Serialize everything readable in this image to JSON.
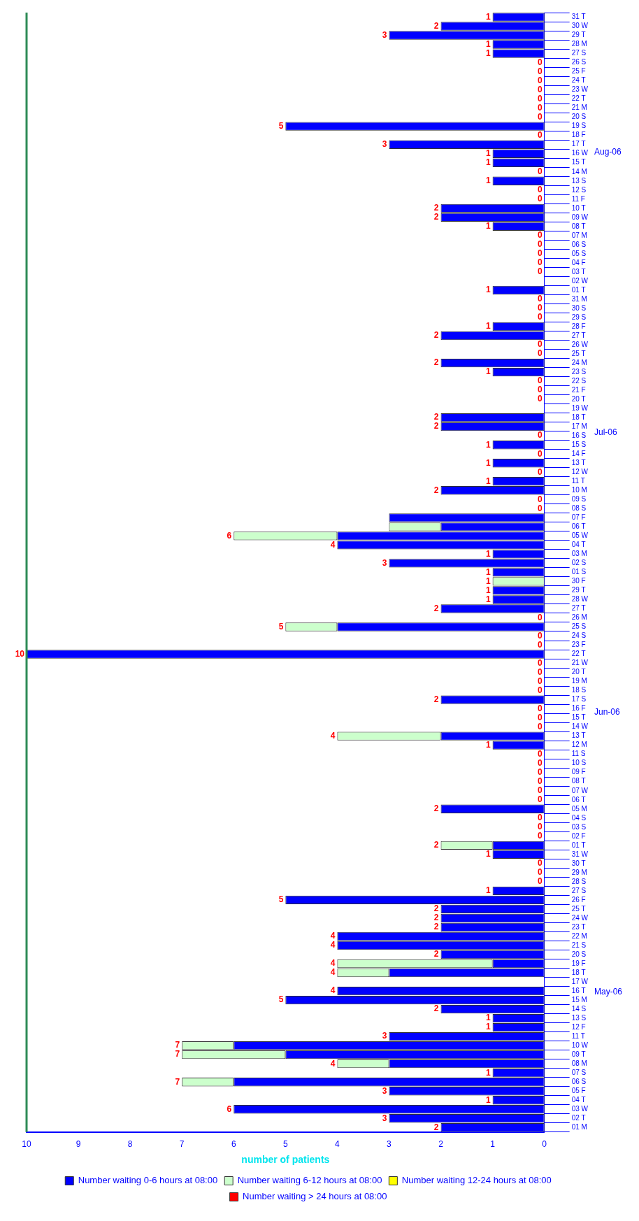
{
  "chart_data": {
    "type": "bar",
    "orientation": "horizontal",
    "stacked": true,
    "xlabel": "number of patients",
    "xlim": [
      10,
      0
    ],
    "xticks": [
      0,
      1,
      2,
      3,
      4,
      5,
      6,
      7,
      8,
      9,
      10
    ],
    "grid": false,
    "legend": "bottom",
    "categories": [
      "31 T",
      "30 W",
      "29 T",
      "28 M",
      "27 S",
      "26 S",
      "25 F",
      "24 T",
      "23 W",
      "22 T",
      "21 M",
      "20 S",
      "19 S",
      "18 F",
      "17 T",
      "16 W",
      "15 T",
      "14 M",
      "13 S",
      "12 S",
      "11 F",
      "10 T",
      "09 W",
      "08 T",
      "07 M",
      "06 S",
      "05 S",
      "04 F",
      "03 T",
      "02 W",
      "01 T",
      "31 M",
      "30 S",
      "29 S",
      "28 F",
      "27 T",
      "26 W",
      "25 T",
      "24 M",
      "23 S",
      "22 S",
      "21 F",
      "20 T",
      "19 W",
      "18 T",
      "17 M",
      "16 S",
      "15 S",
      "14 F",
      "13 T",
      "12 W",
      "11 T",
      "10 M",
      "09 S",
      "08 S",
      "07 F",
      "06 T",
      "05 W",
      "04 T",
      "03 M",
      "02 S",
      "01 S",
      "30 F",
      "29 T",
      "28 W",
      "27 T",
      "26 M",
      "25 S",
      "24 S",
      "23 F",
      "22 T",
      "21 W",
      "20 T",
      "19 M",
      "18 S",
      "17 S",
      "16 F",
      "15 T",
      "14 W",
      "13 T",
      "12 M",
      "11 S",
      "10 S",
      "09 F",
      "08 T",
      "07 W",
      "06 T",
      "05 M",
      "04 S",
      "03 S",
      "02 F",
      "01 T",
      "31 W",
      "30 T",
      "29 M",
      "28 S",
      "27 S",
      "26 F",
      "25 T",
      "24 W",
      "23 T",
      "22 M",
      "21 S",
      "20 S",
      "19 F",
      "18 T",
      "17 W",
      "16 T",
      "15 M",
      "14 S",
      "13 S",
      "12 F",
      "11 T",
      "10 W",
      "09 T",
      "08 M",
      "07 S",
      "06 S",
      "05 F",
      "04 T",
      "03 W",
      "02 T",
      "01 M"
    ],
    "series": [
      {
        "name": "Number waiting 0-6 hours at 08:00",
        "color": "#0000ff",
        "values": [
          1,
          2,
          3,
          1,
          1,
          0,
          0,
          0,
          0,
          0,
          0,
          0,
          5,
          0,
          3,
          1,
          1,
          0,
          1,
          0,
          0,
          2,
          2,
          1,
          0,
          0,
          0,
          0,
          0,
          null,
          1,
          0,
          0,
          0,
          1,
          2,
          0,
          0,
          2,
          1,
          0,
          0,
          0,
          null,
          2,
          2,
          0,
          1,
          0,
          1,
          0,
          1,
          2,
          0,
          0,
          3,
          2,
          4,
          4,
          1,
          3,
          1,
          0,
          1,
          1,
          2,
          0,
          4,
          0,
          0,
          10,
          0,
          0,
          0,
          0,
          2,
          0,
          0,
          0,
          2,
          1,
          0,
          0,
          0,
          0,
          0,
          0,
          2,
          0,
          0,
          0,
          1,
          1,
          0,
          0,
          0,
          1,
          5,
          2,
          2,
          2,
          4,
          4,
          2,
          1,
          3,
          null,
          4,
          5,
          2,
          1,
          1,
          3,
          6,
          5,
          3,
          1,
          6,
          3,
          1,
          6,
          3,
          2
        ]
      },
      {
        "name": "Number waiting 6-12 hours at 08:00",
        "color": "#ccffcc",
        "values": [
          0,
          0,
          0,
          0,
          0,
          0,
          0,
          0,
          0,
          0,
          0,
          0,
          0,
          0,
          0,
          0,
          0,
          0,
          0,
          0,
          0,
          0,
          0,
          0,
          0,
          0,
          0,
          0,
          0,
          null,
          0,
          0,
          0,
          0,
          0,
          0,
          0,
          0,
          0,
          0,
          0,
          0,
          0,
          null,
          0,
          0,
          0,
          0,
          0,
          0,
          0,
          0,
          0,
          0,
          0,
          0,
          1,
          2,
          0,
          0,
          0,
          0,
          1,
          0,
          0,
          0,
          0,
          1,
          0,
          0,
          0,
          0,
          0,
          0,
          0,
          0,
          0,
          0,
          0,
          2,
          0,
          0,
          0,
          0,
          0,
          0,
          0,
          0,
          0,
          0,
          0,
          1,
          0,
          0,
          0,
          0,
          0,
          0,
          0,
          0,
          0,
          0,
          0,
          0,
          3,
          1,
          null,
          0,
          0,
          0,
          0,
          0,
          0,
          1,
          2,
          1,
          0,
          1,
          0,
          0,
          0,
          0,
          0
        ]
      },
      {
        "name": "Number waiting 12-24 hours at 08:00",
        "color": "#ffff00",
        "values": [
          0,
          0,
          0,
          0,
          0,
          0,
          0,
          0,
          0,
          0,
          0,
          0,
          0,
          0,
          0,
          0,
          0,
          0,
          0,
          0,
          0,
          0,
          0,
          0,
          0,
          0,
          0,
          0,
          0,
          null,
          0,
          0,
          0,
          0,
          0,
          0,
          0,
          0,
          0,
          0,
          0,
          0,
          0,
          null,
          0,
          0,
          0,
          0,
          0,
          0,
          0,
          0,
          0,
          0,
          0,
          0,
          0,
          0,
          0,
          0,
          0,
          0,
          0,
          0,
          0,
          0,
          0,
          0,
          0,
          0,
          0,
          0,
          0,
          0,
          0,
          0,
          0,
          0,
          0,
          0,
          0,
          0,
          0,
          0,
          0,
          0,
          0,
          0,
          0,
          0,
          0,
          0,
          0,
          0,
          0,
          0,
          0,
          0,
          0,
          0,
          0,
          0,
          0,
          0,
          0,
          0,
          null,
          0,
          0,
          0,
          0,
          0,
          0,
          0,
          0,
          0,
          0,
          0,
          0,
          0,
          0,
          0,
          0
        ]
      },
      {
        "name": "Number waiting > 24 hours at 08:00",
        "color": "#ff0000",
        "values": [
          0,
          0,
          0,
          0,
          0,
          0,
          0,
          0,
          0,
          0,
          0,
          0,
          0,
          0,
          0,
          0,
          0,
          0,
          0,
          0,
          0,
          0,
          0,
          0,
          0,
          0,
          0,
          0,
          0,
          null,
          0,
          0,
          0,
          0,
          0,
          0,
          0,
          0,
          0,
          0,
          0,
          0,
          0,
          null,
          0,
          0,
          0,
          0,
          0,
          0,
          0,
          0,
          0,
          0,
          0,
          0,
          0,
          0,
          0,
          0,
          0,
          0,
          0,
          0,
          0,
          0,
          0,
          0,
          0,
          0,
          0,
          0,
          0,
          0,
          0,
          0,
          0,
          0,
          0,
          0,
          0,
          0,
          0,
          0,
          0,
          0,
          0,
          0,
          0,
          0,
          0,
          0,
          0,
          0,
          0,
          0,
          0,
          0,
          0,
          0,
          0,
          0,
          0,
          0,
          0,
          0,
          null,
          0,
          0,
          0,
          0,
          0,
          0,
          0,
          0,
          0,
          0,
          0,
          0,
          0,
          0,
          0,
          0
        ]
      }
    ],
    "totals": [
      "1",
      "2",
      "3",
      "1",
      "1",
      "0",
      "0",
      "0",
      "0",
      "0",
      "0",
      "0",
      "5",
      "0",
      "3",
      "1",
      "1",
      "0",
      "1",
      "0",
      "0",
      "2",
      "2",
      "1",
      "0",
      "0",
      "0",
      "0",
      "0",
      null,
      "1",
      "0",
      "0",
      "0",
      "1",
      "2",
      "0",
      "0",
      "2",
      "1",
      "0",
      "0",
      "0",
      null,
      "2",
      "2",
      "0",
      "1",
      "0",
      "1",
      "0",
      "1",
      "2",
      "0",
      "0",
      null,
      null,
      "6",
      "4",
      "1",
      "3",
      "1",
      "1",
      "1",
      "1",
      "2",
      "0",
      "5",
      "0",
      "0",
      "10",
      "0",
      "0",
      "0",
      "0",
      "2",
      "0",
      "0",
      "0",
      "4",
      "1",
      "0",
      "0",
      "0",
      "0",
      "0",
      "0",
      "2",
      "0",
      "0",
      "0",
      "2",
      "1",
      "0",
      "0",
      "0",
      "1",
      "5",
      "2",
      "2",
      "2",
      "4",
      "4",
      "2",
      "4",
      "4",
      null,
      "4",
      "5",
      "2",
      "1",
      "1",
      "3",
      "7",
      "7",
      "4",
      "1",
      "7",
      "3",
      "1",
      "6",
      "3",
      "2"
    ],
    "ref_lines": [
      {
        "axis": "x",
        "value": 10,
        "color": "#2e8b57"
      }
    ],
    "annotations": [
      "Aug-06",
      "Jul-06",
      "Jun-06",
      "May-06"
    ]
  }
}
